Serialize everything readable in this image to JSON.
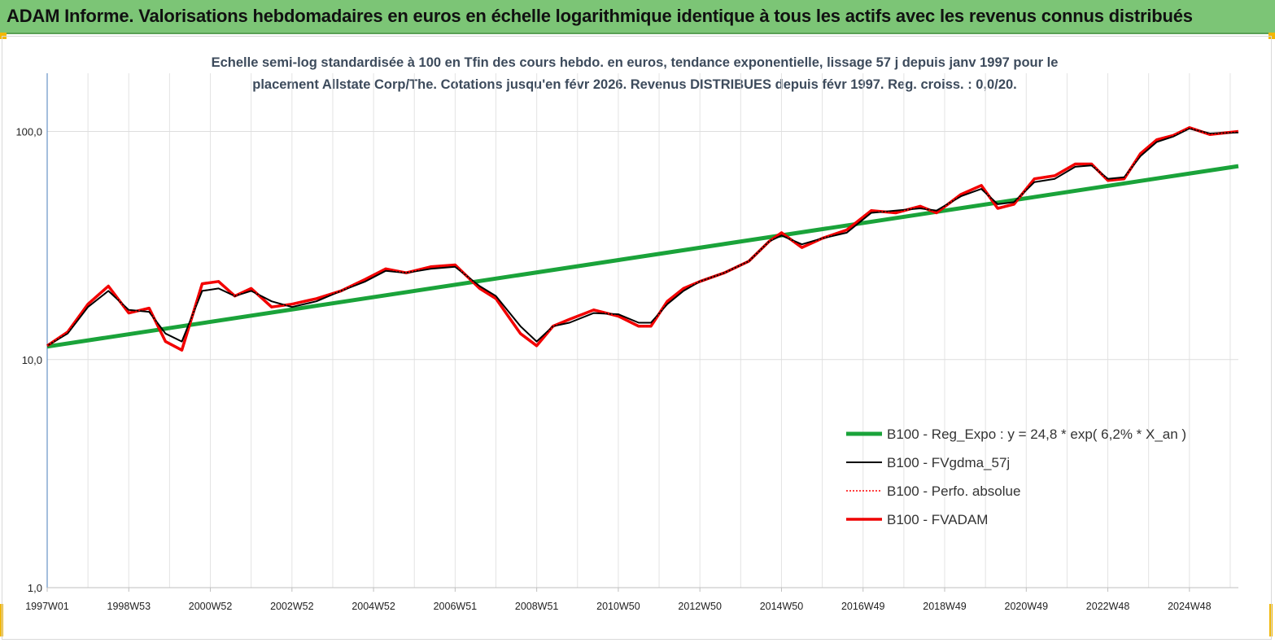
{
  "header": {
    "title": "ADAM Informe. Valorisations hebdomadaires en euros en échelle logarithmique identique à tous les actifs avec les revenus connus distribués"
  },
  "chart_data": {
    "type": "line",
    "title_line1": "Echelle semi-log standardisée à 100 en Tfin des cours hebdo. en euros, tendance exponentielle, lissage 57 j depuis janv 1997 pour le",
    "title_line2": "placement Allstate Corp/The. Cotations jusqu'en févr 2026. Revenus DISTRIBUES depuis févr 1997. Reg. croiss. : 0,0/20.",
    "yscale": "log",
    "ylim": [
      1,
      180
    ],
    "yticks": [
      1,
      10,
      100
    ],
    "ytick_labels": [
      "1,0",
      "10,0",
      "100,0"
    ],
    "xlim": [
      1997.0,
      2026.2
    ],
    "xtick_labels": [
      "1997W01",
      "1998W53",
      "2000W52",
      "2002W52",
      "2004W52",
      "2006W51",
      "2008W51",
      "2010W50",
      "2012W50",
      "2014W50",
      "2016W49",
      "2018W49",
      "2020W49",
      "2022W48",
      "2024W48"
    ],
    "xtick_years": [
      1997.0,
      1999.0,
      2001.0,
      2003.0,
      2005.0,
      2007.0,
      2009.0,
      2011.0,
      2013.0,
      2015.0,
      2017.0,
      2019.0,
      2021.0,
      2023.0,
      2025.0
    ],
    "grid": true,
    "legend_position": "bottom-right",
    "series": [
      {
        "name": "B100 - Reg_Expo : y = 24,8 *  exp( 6,2% *  X_an )",
        "color": "#1aa33a",
        "x": [
          1997.0,
          2026.2
        ],
        "y": [
          11.4,
          70.5
        ]
      },
      {
        "name": "B100 - FVgdma_57j",
        "color": "#000000",
        "x": [
          1997.0,
          1997.5,
          1998.0,
          1998.5,
          1999.0,
          1999.5,
          1999.9,
          2000.3,
          2000.8,
          2001.2,
          2001.6,
          2002.0,
          2002.5,
          2003.0,
          2003.6,
          2004.2,
          2004.8,
          2005.3,
          2005.8,
          2006.4,
          2007.0,
          2007.6,
          2008.0,
          2008.6,
          2009.0,
          2009.4,
          2009.8,
          2010.4,
          2011.0,
          2011.5,
          2011.8,
          2012.2,
          2012.6,
          2013.0,
          2013.6,
          2014.2,
          2014.7,
          2015.0,
          2015.5,
          2016.0,
          2016.6,
          2017.2,
          2017.8,
          2018.4,
          2018.8,
          2019.4,
          2019.9,
          2020.3,
          2020.7,
          2021.2,
          2021.7,
          2022.2,
          2022.6,
          2023.0,
          2023.4,
          2023.8,
          2024.2,
          2024.6,
          2025.0,
          2025.5,
          2026.2
        ],
        "y": [
          11.5,
          13.0,
          17.0,
          20.0,
          16.5,
          16.2,
          13.0,
          12.0,
          20.0,
          20.5,
          19.0,
          20.0,
          18.0,
          17.0,
          18.0,
          20.0,
          22.0,
          24.5,
          24.0,
          25.0,
          25.5,
          21.0,
          19.0,
          14.0,
          12.0,
          14.0,
          14.5,
          16.0,
          15.8,
          14.5,
          14.5,
          17.5,
          20.0,
          22.0,
          24.0,
          27.0,
          33.0,
          35.0,
          32.0,
          34.0,
          36.0,
          44.0,
          45.0,
          46.0,
          45.0,
          52.0,
          56.0,
          48.0,
          49.0,
          60.0,
          62.0,
          70.0,
          71.0,
          62.0,
          63.0,
          78.0,
          90.0,
          95.0,
          103.0,
          98.0,
          99.0
        ]
      },
      {
        "name": "B100 - Perfo. absolue",
        "color": "#ff0000",
        "x": [
          1997.0,
          1997.5,
          1998.0,
          1998.5,
          1999.0,
          1999.5,
          1999.9,
          2000.3,
          2000.8,
          2001.2,
          2001.6,
          2002.0,
          2002.5,
          2003.0,
          2003.6,
          2004.2,
          2004.8,
          2005.3,
          2005.8,
          2006.4,
          2007.0,
          2007.6,
          2008.0,
          2008.6,
          2009.0,
          2009.4,
          2009.8,
          2010.4,
          2011.0,
          2011.5,
          2011.8,
          2012.2,
          2012.6,
          2013.0,
          2013.6,
          2014.2,
          2014.7,
          2015.0,
          2015.5,
          2016.0,
          2016.6,
          2017.2,
          2017.8,
          2018.4,
          2018.8,
          2019.4,
          2019.9,
          2020.3,
          2020.7,
          2021.2,
          2021.7,
          2022.2,
          2022.6,
          2023.0,
          2023.4,
          2023.8,
          2024.2,
          2024.6,
          2025.0,
          2025.5,
          2026.2
        ],
        "y": [
          11.5,
          13.2,
          17.5,
          21.0,
          16.0,
          16.8,
          12.0,
          11.0,
          21.5,
          22.0,
          19.0,
          20.5,
          17.0,
          17.5,
          18.5,
          20.0,
          22.5,
          25.0,
          24.0,
          25.5,
          26.0,
          20.5,
          18.5,
          13.0,
          11.5,
          14.0,
          15.0,
          16.5,
          15.5,
          14.0,
          14.0,
          18.0,
          20.5,
          22.0,
          24.0,
          27.0,
          33.0,
          36.0,
          31.0,
          34.0,
          37.0,
          45.0,
          44.0,
          47.0,
          44.0,
          53.0,
          58.0,
          46.0,
          48.0,
          62.0,
          64.0,
          72.0,
          72.0,
          61.0,
          62.0,
          80.0,
          92.0,
          96.0,
          104.0,
          97.0,
          100.0
        ]
      },
      {
        "name": "B100 - FVADAM",
        "color": "#ee0000",
        "x": [
          1997.0,
          1997.5,
          1998.0,
          1998.5,
          1999.0,
          1999.5,
          1999.9,
          2000.3,
          2000.8,
          2001.2,
          2001.6,
          2002.0,
          2002.5,
          2003.0,
          2003.6,
          2004.2,
          2004.8,
          2005.3,
          2005.8,
          2006.4,
          2007.0,
          2007.6,
          2008.0,
          2008.6,
          2009.0,
          2009.4,
          2009.8,
          2010.4,
          2011.0,
          2011.5,
          2011.8,
          2012.2,
          2012.6,
          2013.0,
          2013.6,
          2014.2,
          2014.7,
          2015.0,
          2015.5,
          2016.0,
          2016.6,
          2017.2,
          2017.8,
          2018.4,
          2018.8,
          2019.4,
          2019.9,
          2020.3,
          2020.7,
          2021.2,
          2021.7,
          2022.2,
          2022.6,
          2023.0,
          2023.4,
          2023.8,
          2024.2,
          2024.6,
          2025.0,
          2025.5,
          2026.2
        ],
        "y": [
          11.5,
          13.2,
          17.5,
          21.0,
          16.0,
          16.8,
          12.0,
          11.0,
          21.5,
          22.0,
          19.0,
          20.5,
          17.0,
          17.5,
          18.5,
          20.0,
          22.5,
          25.0,
          24.0,
          25.5,
          26.0,
          20.5,
          18.5,
          13.0,
          11.5,
          14.0,
          15.0,
          16.5,
          15.5,
          14.0,
          14.0,
          18.0,
          20.5,
          22.0,
          24.0,
          27.0,
          33.0,
          36.0,
          31.0,
          34.0,
          37.0,
          45.0,
          44.0,
          47.0,
          44.0,
          53.0,
          58.0,
          46.0,
          48.0,
          62.0,
          64.0,
          72.0,
          72.0,
          61.0,
          62.0,
          80.0,
          92.0,
          96.0,
          104.0,
          97.0,
          100.0
        ]
      }
    ]
  }
}
